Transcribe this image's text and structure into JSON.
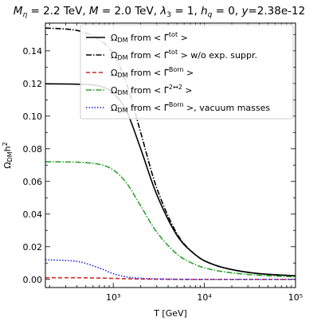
{
  "chart_data": {
    "type": "line",
    "title": "M_η = 2.2 TeV, M = 2.0 TeV, λ₃ = 1, h_q = 0, y=2.38e-12",
    "xlabel": "T [GeV]",
    "ylabel": "Ω_DM h²",
    "xscale": "log",
    "xlim": [
      180,
      100000
    ],
    "ylim": [
      -0.005,
      0.157
    ],
    "x_ticks": [
      "10³",
      "10⁴",
      "10⁵"
    ],
    "y_ticks": [
      "0.00",
      "0.02",
      "0.04",
      "0.06",
      "0.08",
      "0.10",
      "0.12",
      "0.14"
    ],
    "legend_position": "top-right",
    "series": [
      {
        "name": "Ω_DM from < Γ̂^tot >",
        "color": "#000000",
        "dash": "solid",
        "x": [
          180,
          400,
          700,
          1000,
          1400,
          2000,
          3000,
          5000,
          8000,
          12000,
          20000,
          40000,
          100000
        ],
        "y": [
          0.1198,
          0.1196,
          0.1185,
          0.114,
          0.103,
          0.08,
          0.052,
          0.027,
          0.015,
          0.0095,
          0.006,
          0.0035,
          0.0022
        ]
      },
      {
        "name": "Ω_DM from < Γ̂^tot >  w/o exp. suppr.",
        "color": "#000000",
        "dash": "dashdot",
        "x": [
          180,
          400,
          700,
          1000,
          1400,
          2000,
          3000,
          5000,
          8000,
          12000,
          20000,
          40000,
          100000
        ],
        "y": [
          0.154,
          0.1525,
          0.147,
          0.138,
          0.12,
          0.09,
          0.056,
          0.028,
          0.015,
          0.0095,
          0.006,
          0.0035,
          0.0022
        ]
      },
      {
        "name": "Ω_DM from < Γ̂^Born >",
        "color": "#d62728",
        "dash": "dashed",
        "x": [
          180,
          400,
          700,
          1000,
          1400,
          2000,
          3000,
          5000,
          8000,
          12000,
          20000,
          40000,
          100000
        ],
        "y": [
          0.001,
          0.001,
          0.0008,
          0.0006,
          0.0004,
          0.0002,
          0.0001,
          0.0,
          0.0,
          0.0,
          0.0,
          0.0,
          0.0
        ]
      },
      {
        "name": "Ω_DM from < Γ̂^{2↔2} >",
        "color": "#2ca02c",
        "dash": "dashdot",
        "x": [
          180,
          400,
          700,
          1000,
          1400,
          2000,
          3000,
          5000,
          8000,
          12000,
          20000,
          40000,
          100000
        ],
        "y": [
          0.072,
          0.0718,
          0.0705,
          0.067,
          0.059,
          0.045,
          0.029,
          0.0155,
          0.009,
          0.006,
          0.004,
          0.0025,
          0.0015
        ]
      },
      {
        "name": "Ω_DM from < Γ̂^Born >, vacuum masses",
        "color": "#1f1fd6",
        "dash": "dotted",
        "x": [
          180,
          400,
          700,
          1000,
          1400,
          2000,
          3000,
          5000,
          8000,
          12000,
          20000,
          40000,
          100000
        ],
        "y": [
          0.012,
          0.011,
          0.007,
          0.0035,
          0.0015,
          0.0007,
          0.0003,
          0.0001,
          0.0,
          0.0,
          0.0,
          0.0,
          0.0
        ]
      }
    ]
  }
}
